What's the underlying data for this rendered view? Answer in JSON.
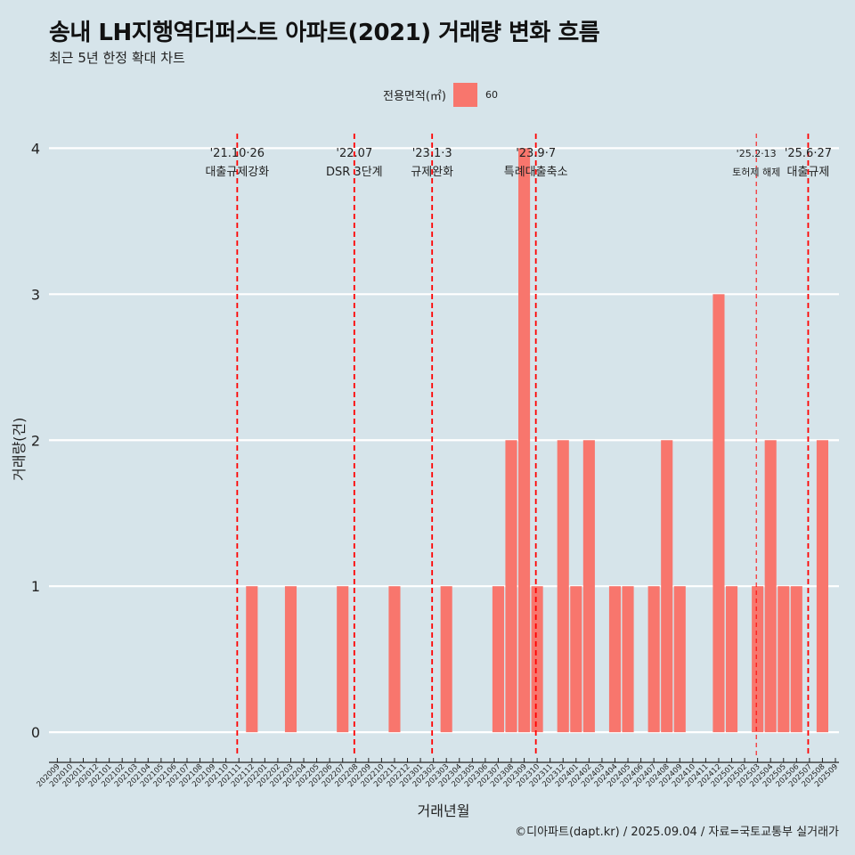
{
  "title": "송내 LH지행역더퍼스트 아파트(2021) 거래량 변화 흐름",
  "subtitle": "최근 5년 한정 확대 차트",
  "legend": {
    "label": "전용면적(㎡)",
    "value": "60"
  },
  "caption": "©디아파트(dapt.kr) / 2025.09.04 / 자료=국토교통부 실거래가",
  "chart_data": {
    "type": "bar",
    "title": "송내 LH지행역더퍼스트 아파트(2021) 거래량 변화 흐름",
    "xlabel": "거래년월",
    "ylabel": "거래량(건)",
    "ylim": [
      -0.17,
      4.1
    ],
    "yticks": [
      0,
      1,
      2,
      3,
      4
    ],
    "grid": true,
    "legend_position": "top",
    "colors": {
      "bar": "#f8766d",
      "event_line": "#ff0000",
      "grid": "#ffffff"
    },
    "categories": [
      "202009",
      "202010",
      "202011",
      "202012",
      "202101",
      "202102",
      "202103",
      "202104",
      "202105",
      "202106",
      "202107",
      "202108",
      "202109",
      "202110",
      "202111",
      "202112",
      "202201",
      "202202",
      "202203",
      "202204",
      "202205",
      "202206",
      "202207",
      "202208",
      "202209",
      "202210",
      "202211",
      "202212",
      "202301",
      "202302",
      "202303",
      "202304",
      "202305",
      "202306",
      "202307",
      "202308",
      "202309",
      "202310",
      "202311",
      "202312",
      "202401",
      "202402",
      "202403",
      "202404",
      "202405",
      "202406",
      "202407",
      "202408",
      "202409",
      "202410",
      "202411",
      "202412",
      "202501",
      "202502",
      "202503",
      "202504",
      "202505",
      "202506",
      "202507",
      "202508",
      "202509"
    ],
    "series": [
      {
        "name": "60",
        "values": [
          0,
          0,
          0,
          0,
          0,
          0,
          0,
          0,
          0,
          0,
          0,
          0,
          0,
          0,
          0,
          1,
          0,
          0,
          1,
          0,
          0,
          0,
          1,
          0,
          0,
          0,
          1,
          0,
          0,
          0,
          1,
          0,
          0,
          0,
          1,
          2,
          4,
          1,
          0,
          2,
          1,
          2,
          0,
          1,
          1,
          0,
          1,
          2,
          1,
          0,
          0,
          3,
          1,
          0,
          1,
          2,
          1,
          1,
          0,
          2,
          0
        ]
      }
    ],
    "annotations": [
      {
        "date_label": "'21.10·26",
        "text": "대출규제강화",
        "x": 13.87,
        "style": "bold"
      },
      {
        "date_label": "'22.07",
        "text": "DSR 3단계",
        "x": 22.9,
        "style": "bold"
      },
      {
        "date_label": "'23.1·3",
        "text": "규제완화",
        "x": 28.9,
        "style": "bold"
      },
      {
        "date_label": "'23.9·7",
        "text": "특례대출축소",
        "x": 36.9,
        "style": "bold"
      },
      {
        "date_label": "'25.2·13",
        "text": "토허제 해제",
        "x": 53.9,
        "style": "thin"
      },
      {
        "date_label": "'25.6·27",
        "text": "대출규제",
        "x": 57.9,
        "style": "bold"
      }
    ]
  }
}
